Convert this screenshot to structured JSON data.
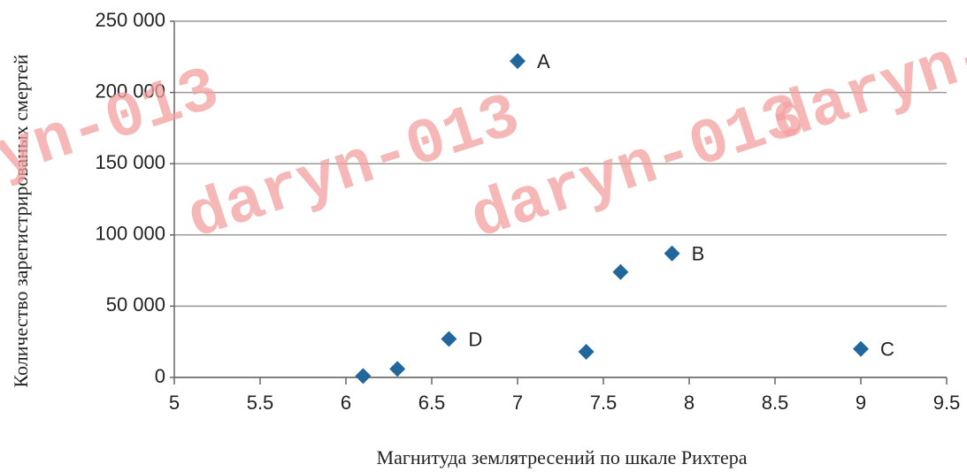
{
  "chart_data": {
    "type": "scatter",
    "xlabel": "Магнитуда землятресений по шкале Рихтера",
    "ylabel": "Количество зарегистрированых смертей",
    "x": [
      6.1,
      6.3,
      6.6,
      7.0,
      7.4,
      7.6,
      7.9,
      9.0
    ],
    "values": [
      1000,
      6000,
      27000,
      222000,
      18000,
      74000,
      87000,
      20000
    ],
    "point_labels": [
      null,
      null,
      "D",
      "A",
      null,
      null,
      "B",
      "C"
    ],
    "color": "#21679e",
    "xlim": [
      5,
      9.5
    ],
    "xticks": [
      5,
      5.5,
      6,
      6.5,
      7,
      7.5,
      8,
      8.5,
      9,
      9.5
    ],
    "ylim": [
      0,
      250000
    ],
    "yticks": [
      0,
      {
        "value": 50000,
        "label": "50 000"
      },
      {
        "value": 100000,
        "label": "100 000"
      },
      {
        "value": 150000,
        "label": "150 000"
      },
      {
        "value": 200000,
        "label": "200 000"
      },
      {
        "value": 250000,
        "label": "250 000"
      }
    ],
    "grid": true,
    "watermark": "daryn-013"
  }
}
